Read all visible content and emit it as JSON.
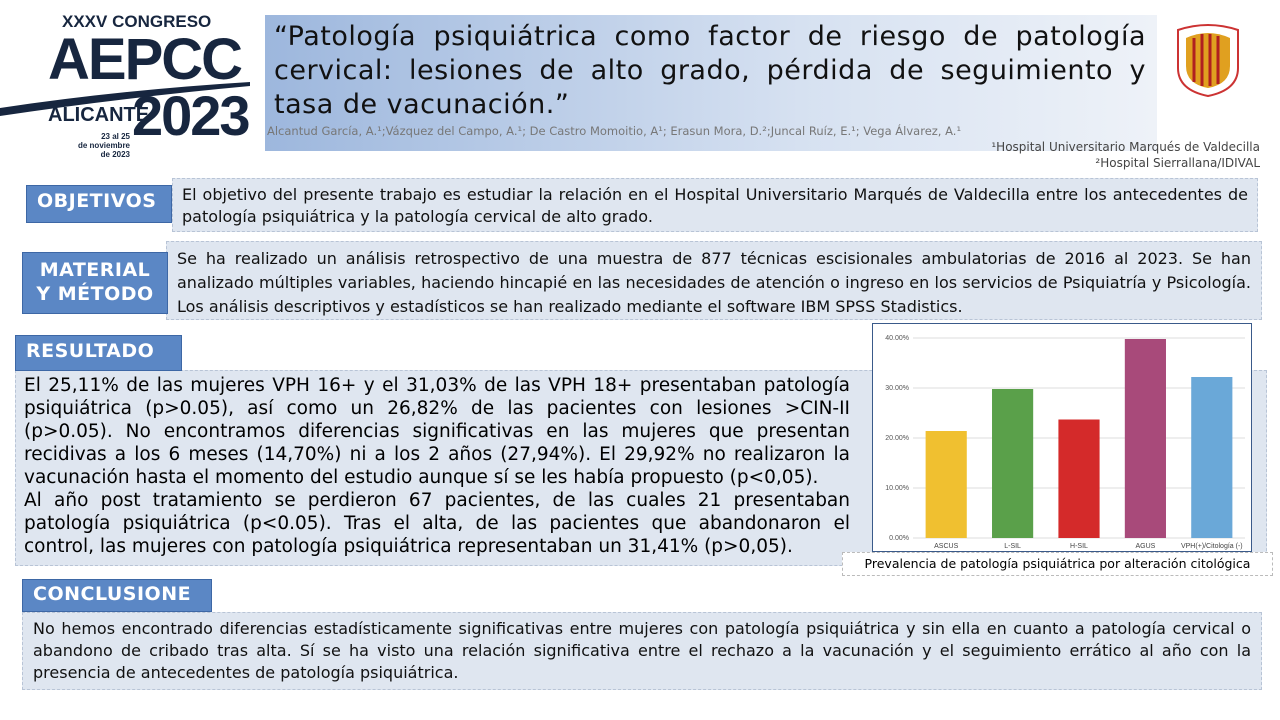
{
  "header": {
    "congress": "XXXV CONGRESO",
    "society": "AEPCC",
    "city": "ALICANTE",
    "year": "2023",
    "dates": [
      "23 al 25",
      "de noviembre",
      "de 2023"
    ],
    "title": "“Patología psiquiátrica como factor de riesgo de patología cervical: lesiones de alto grado, pérdida de seguimiento y tasa de vacunación.”",
    "authors": "Alcantud García, A.¹;Vázquez del Campo, A.¹; De Castro Momoitio, A¹; Erasun Mora, D.²;Juncal Ruíz, E.¹; Vega Álvarez, A.¹",
    "affiliations": [
      "¹Hospital Universitario Marqués de Valdecilla",
      "²Hospital Sierrallana/IDIVAL"
    ]
  },
  "sections": [
    {
      "heading": [
        "OBJETIVOS"
      ],
      "body": [
        "El objetivo del presente trabajo es estudiar la relación en el Hospital Universitario Marqués de Valdecilla entre los antecedentes de patología psiquiátrica y la patología cervical de alto grado."
      ]
    },
    {
      "heading": [
        "MATERIAL",
        "Y MÉTODO"
      ],
      "body": [
        "Se ha realizado un análisis retrospectivo de una muestra de 877 técnicas escisionales ambulatorias de 2016 al 2023. Se han analizado múltiples variables, haciendo hincapié en las necesidades de atención o ingreso en los servicios de Psiquiatría y Psicología. Los análisis descriptivos y estadísticos se han realizado mediante el software IBM SPSS Stadistics."
      ]
    },
    {
      "heading": [
        "RESULTADO"
      ],
      "body": [
        "El 25,11% de las mujeres VPH 16+ y el 31,03% de las VPH 18+ presentaban patología psiquiátrica (p>0.05), así como un 26,82% de las pacientes con lesiones >CIN-II (p>0.05). No encontramos diferencias significativas en las mujeres que presentan recidivas a los 6 meses (14,70%) ni a los 2 años (27,94%). El 29,92% no realizaron la vacunación hasta el momento del estudio aunque sí se les había propuesto (p<0,05).",
        "Al año post tratamiento se perdieron 67 pacientes, de las cuales 21 presentaban patología psiquiátrica (p<0.05). Tras el alta, de las pacientes que abandonaron el control, las mujeres con patología psiquiátrica representaban un 31,41% (p>0,05)."
      ]
    },
    {
      "heading": [
        "CONCLUSIONE"
      ],
      "body": [
        "No hemos encontrado diferencias estadísticamente significativas entre mujeres con patología psiquiátrica y sin ella en cuanto a patología cervical o abandono de cribado tras alta. Sí se ha visto una relación significativa entre el rechazo a la vacunación y el seguimiento errático al año con la presencia de antecedentes de patología psiquiátrica."
      ]
    }
  ],
  "chart_data": {
    "type": "bar",
    "title": "Prevalencia de patología psiquiátrica por alteración citológica",
    "categories": [
      "ASCUS",
      "L-SIL",
      "H-SIL",
      "AGUS",
      "VPH(+)/Citología (-)"
    ],
    "values": [
      21.4,
      29.8,
      23.7,
      39.8,
      32.2
    ],
    "colors": [
      "#f0c030",
      "#5aa04a",
      "#d42a2a",
      "#a84a7a",
      "#6aa8d8"
    ],
    "ylim": [
      0,
      42
    ],
    "yticks": [
      {
        "value": 0,
        "label": "0.00%"
      },
      {
        "value": 10,
        "label": "10.00%"
      },
      {
        "value": 20,
        "label": "20.00%"
      },
      {
        "value": 30,
        "label": "30.00%"
      },
      {
        "value": 40,
        "label": "40.00%"
      }
    ],
    "grid": true
  }
}
